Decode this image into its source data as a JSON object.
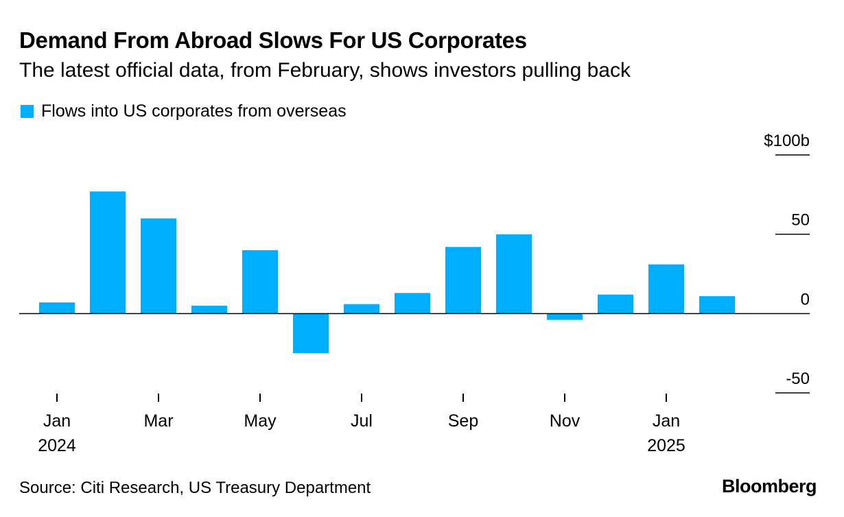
{
  "header": {
    "title": "Demand From Abroad Slows For US Corporates",
    "subtitle": "The latest official data, from February, shows investors pulling back"
  },
  "footer": {
    "source": "Source: Citi Research, US Treasury Department",
    "logo_text": "Bloomberg"
  },
  "colors": {
    "bar": "#00aeff",
    "axis": "#000000"
  },
  "chart_data": {
    "type": "bar",
    "categories": [
      "Jan 2024",
      "Feb 2024",
      "Mar 2024",
      "Apr 2024",
      "May 2024",
      "Jun 2024",
      "Jul 2024",
      "Aug 2024",
      "Sep 2024",
      "Oct 2024",
      "Nov 2024",
      "Dec 2024",
      "Jan 2025",
      "Feb 2025"
    ],
    "series": [
      {
        "name": "Flows into US corporates from overseas",
        "values": [
          7,
          77,
          60,
          5,
          40,
          -25,
          6,
          13,
          42,
          50,
          -4,
          12,
          31,
          11
        ]
      }
    ],
    "ylim": [
      -50,
      100
    ],
    "yticks": [
      {
        "value": 100,
        "label": "$100b"
      },
      {
        "value": 50,
        "label": "50"
      },
      {
        "value": 0,
        "label": "0"
      },
      {
        "value": -50,
        "label": "-50"
      }
    ],
    "xticks": [
      {
        "index": 0,
        "label": "Jan",
        "sublabel": "2024"
      },
      {
        "index": 2,
        "label": "Mar",
        "sublabel": ""
      },
      {
        "index": 4,
        "label": "May",
        "sublabel": ""
      },
      {
        "index": 6,
        "label": "Jul",
        "sublabel": ""
      },
      {
        "index": 8,
        "label": "Sep",
        "sublabel": ""
      },
      {
        "index": 10,
        "label": "Nov",
        "sublabel": ""
      },
      {
        "index": 12,
        "label": "Jan",
        "sublabel": "2025"
      }
    ],
    "legend_position": "top-left",
    "y_axis_position": "right",
    "grid": false
  }
}
